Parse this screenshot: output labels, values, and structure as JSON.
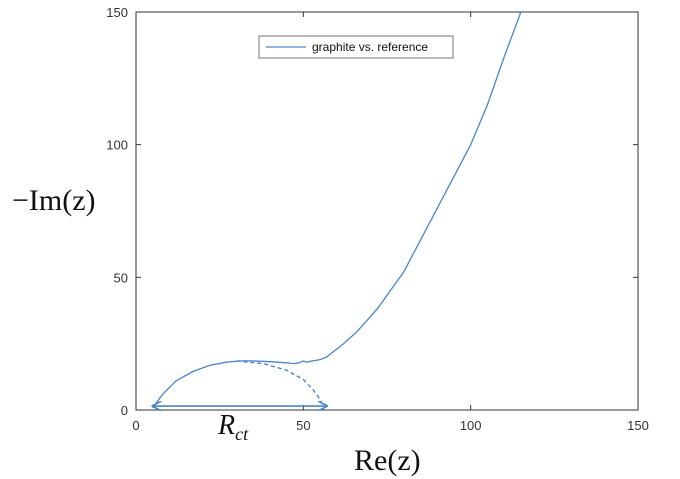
{
  "chart_data": {
    "type": "line",
    "xlabel": "Re(z)",
    "ylabel": "−Im(z)",
    "xlim": [
      0,
      150
    ],
    "ylim": [
      0,
      150
    ],
    "xticks": [
      0,
      50,
      100,
      150
    ],
    "yticks": [
      0,
      50,
      100,
      150
    ],
    "grid": false,
    "legend_position": "top-center",
    "series": [
      {
        "name": "graphite vs. reference",
        "color": "#4a86c5",
        "x": [
          5,
          8,
          12,
          17,
          22,
          27,
          31,
          35,
          40,
          45,
          47,
          48,
          49,
          50,
          51,
          52,
          55,
          57,
          59,
          62,
          66,
          72,
          80,
          90,
          100,
          105,
          110,
          115
        ],
        "y": [
          0.8,
          6,
          11,
          14.5,
          16.8,
          18,
          18.5,
          18.5,
          18.2,
          17.8,
          17.5,
          17.6,
          17.9,
          18.5,
          18,
          18.3,
          19,
          20,
          22,
          25,
          29.5,
          38,
          52,
          76,
          100,
          115,
          133,
          150
        ]
      }
    ],
    "annotations": [
      {
        "type": "dashed-arc",
        "label": "fitted semicircle",
        "color": "#4a86c5",
        "x": [
          30,
          38,
          45,
          50,
          53,
          55,
          56
        ],
        "y": [
          18.5,
          17.5,
          15,
          11.5,
          7.5,
          4,
          1.2
        ]
      },
      {
        "type": "double-arrow",
        "color": "#4a86c5",
        "x_start": 5,
        "x_end": 57,
        "y": 1.5,
        "label": "R",
        "label_sub": "ct"
      }
    ]
  }
}
